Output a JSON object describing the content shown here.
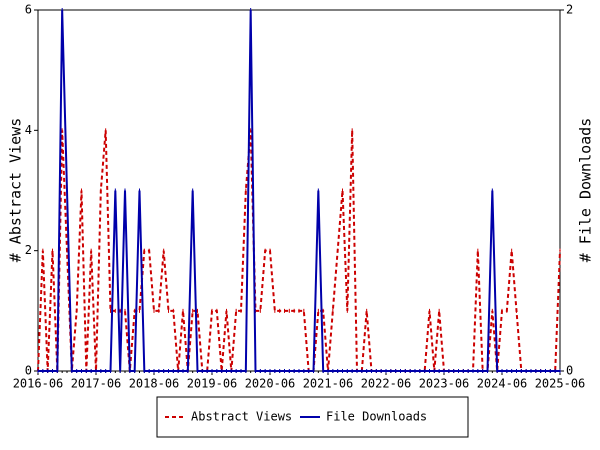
{
  "chart_data": {
    "type": "line",
    "y_label": "# Abstract Views",
    "y2_label": "# File Downloads",
    "categories": [
      "2016-06",
      null,
      null,
      null,
      null,
      null,
      null,
      null,
      null,
      null,
      null,
      null,
      "2017-06",
      null,
      null,
      null,
      null,
      null,
      null,
      null,
      null,
      null,
      null,
      null,
      "2018-06",
      null,
      null,
      null,
      null,
      null,
      null,
      null,
      null,
      null,
      null,
      null,
      "2019-06",
      null,
      null,
      null,
      null,
      null,
      null,
      null,
      null,
      null,
      null,
      null,
      "2020-06",
      null,
      null,
      null,
      null,
      null,
      null,
      null,
      null,
      null,
      null,
      null,
      "2021-06",
      null,
      null,
      null,
      null,
      null,
      null,
      null,
      null,
      null,
      null,
      null,
      "2022-06",
      null,
      null,
      null,
      null,
      null,
      null,
      null,
      null,
      null,
      null,
      null,
      "2023-06",
      null,
      null,
      null,
      null,
      null,
      null,
      null,
      null,
      null,
      null,
      null,
      "2024-06",
      null,
      null,
      null,
      null,
      null,
      null,
      null,
      null,
      null,
      null,
      null,
      "2025-06"
    ],
    "series": [
      {
        "name": "Abstract Views",
        "color": "#cc0000",
        "dash": true,
        "values": [
          0,
          2,
          0,
          2,
          0,
          4,
          2,
          0,
          1,
          3,
          0,
          2,
          0,
          3,
          4,
          1,
          1,
          1,
          1,
          0,
          1,
          1,
          2,
          2,
          1,
          1,
          2,
          1,
          1,
          0,
          1,
          0,
          1,
          1,
          0,
          0,
          1,
          1,
          0,
          1,
          0,
          1,
          1,
          3,
          4,
          1,
          1,
          2,
          2,
          1,
          1,
          1,
          1,
          1,
          1,
          1,
          0,
          0,
          1,
          1,
          0,
          1,
          2,
          3,
          1,
          4,
          0,
          0,
          1,
          0,
          0,
          0,
          0,
          0,
          0,
          0,
          0,
          0,
          0,
          0,
          0,
          1,
          0,
          1,
          0,
          0,
          0,
          0,
          0,
          0,
          0,
          2,
          0,
          0,
          1,
          0,
          1,
          1,
          2,
          1,
          0,
          0,
          0,
          0,
          0,
          0,
          0,
          0,
          2
        ]
      },
      {
        "name": "File Downloads",
        "color": "#0000aa",
        "dash": false,
        "axis": "y2",
        "values": [
          0,
          0,
          0,
          0,
          0,
          2,
          1,
          0,
          0,
          0,
          0,
          0,
          0,
          0,
          0,
          0,
          1,
          0,
          1,
          0,
          0,
          1,
          0,
          0,
          0,
          0,
          0,
          0,
          0,
          0,
          0,
          0,
          1,
          0,
          0,
          0,
          0,
          0,
          0,
          0,
          0,
          0,
          0,
          0,
          2,
          0,
          0,
          0,
          0,
          0,
          0,
          0,
          0,
          0,
          0,
          0,
          0,
          0,
          1,
          0,
          0,
          0,
          0,
          0,
          0,
          0,
          0,
          0,
          0,
          0,
          0,
          0,
          0,
          0,
          0,
          0,
          0,
          0,
          0,
          0,
          0,
          0,
          0,
          0,
          0,
          0,
          0,
          0,
          0,
          0,
          0,
          0,
          0,
          0,
          1,
          0,
          0,
          0,
          0,
          0,
          0,
          0,
          0,
          0,
          0,
          0,
          0,
          0,
          0
        ]
      }
    ],
    "ylim": [
      0,
      6
    ],
    "yticks": [
      0,
      2,
      4,
      6
    ],
    "y2lim": [
      0,
      2
    ],
    "y2ticks": [
      0,
      2
    ],
    "legend": "bottom"
  }
}
